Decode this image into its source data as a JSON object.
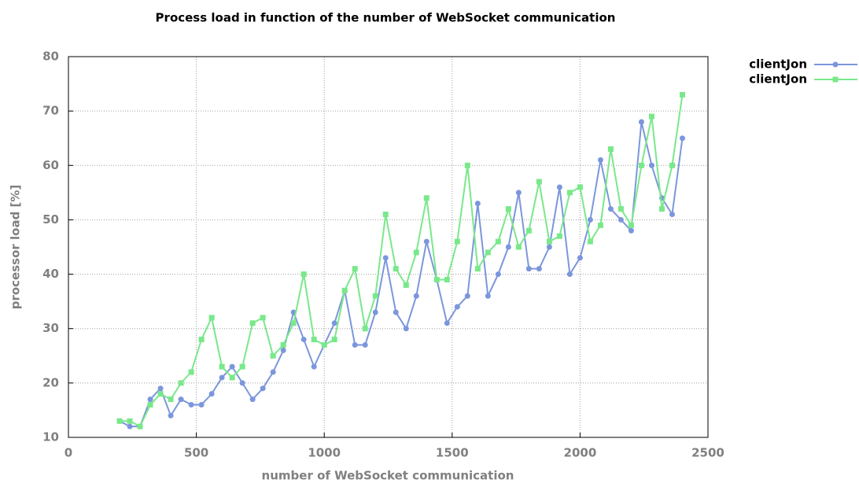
{
  "chart_data": {
    "type": "line",
    "title": "Process load in function of the number of WebSocket communication",
    "x_label": "number of WebSocket communication",
    "y_label": "processor load [%]",
    "x": [
      200,
      240,
      280,
      320,
      360,
      400,
      440,
      480,
      520,
      560,
      600,
      640,
      680,
      720,
      760,
      800,
      840,
      880,
      920,
      960,
      1000,
      1040,
      1080,
      1120,
      1160,
      1200,
      1240,
      1280,
      1320,
      1360,
      1400,
      1440,
      1480,
      1520,
      1560,
      1600,
      1640,
      1680,
      1720,
      1760,
      1800,
      1840,
      1880,
      1920,
      1960,
      2000,
      2040,
      2080,
      2120,
      2160,
      2200,
      2240,
      2280,
      2320,
      2360,
      2400
    ],
    "series": [
      {
        "name": "clientJon",
        "color": "#7b96dc",
        "marker": "circle",
        "values": [
          13,
          12,
          12,
          17,
          19,
          14,
          17,
          16,
          16,
          18,
          21,
          23,
          20,
          17,
          19,
          22,
          26,
          33,
          28,
          23,
          27,
          31,
          37,
          27,
          27,
          33,
          43,
          33,
          30,
          36,
          46,
          39,
          31,
          34,
          36,
          53,
          36,
          40,
          45,
          55,
          41,
          41,
          45,
          56,
          40,
          43,
          50,
          61,
          52,
          50,
          48,
          68,
          60,
          54,
          51,
          65
        ]
      },
      {
        "name": "clientJon",
        "color": "#79e88a",
        "marker": "square",
        "values": [
          13,
          13,
          12,
          16,
          18,
          17,
          20,
          22,
          28,
          32,
          23,
          21,
          23,
          31,
          32,
          25,
          27,
          31,
          40,
          28,
          27,
          28,
          37,
          41,
          30,
          36,
          51,
          41,
          38,
          44,
          54,
          39,
          39,
          46,
          60,
          41,
          44,
          46,
          52,
          45,
          48,
          57,
          46,
          47,
          55,
          56,
          46,
          49,
          63,
          52,
          49,
          60,
          69,
          52,
          60,
          73
        ]
      }
    ],
    "xlim": [
      0,
      2500
    ],
    "xticks": [
      0,
      500,
      1000,
      1500,
      2000,
      2500
    ],
    "ylim": [
      10,
      80
    ],
    "yticks": [
      10,
      20,
      30,
      40,
      50,
      60,
      70,
      80
    ],
    "grid": true,
    "legend": "top-right"
  }
}
